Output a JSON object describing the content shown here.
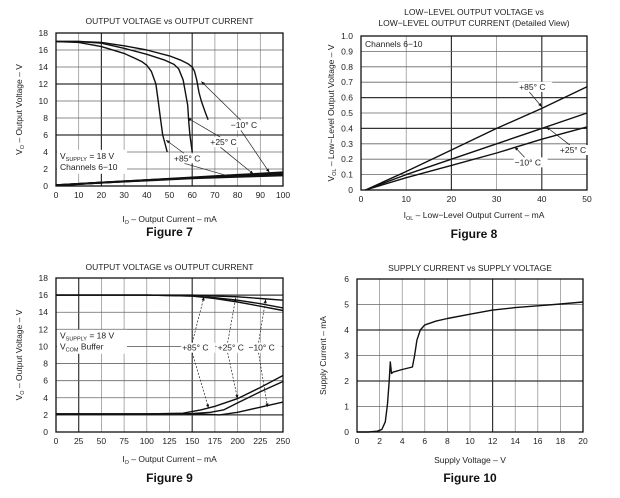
{
  "chart_data": [
    {
      "id": "fig7",
      "type": "line",
      "figure_label": "Figure 7",
      "title": [
        "OUTPUT VOLTAGE vs OUTPUT CURRENT"
      ],
      "xlabel": {
        "main": "I",
        "sub": "O",
        "rest": " – Output Current – mA"
      },
      "ylabel": {
        "main": "V",
        "sub": "O",
        "rest": " – Output Voltage – V"
      },
      "xlim": [
        0,
        100
      ],
      "ylim": [
        0,
        18
      ],
      "xticks": [
        0,
        10,
        20,
        30,
        40,
        50,
        60,
        70,
        80,
        90,
        100
      ],
      "yticks": [
        0,
        2,
        4,
        6,
        8,
        10,
        12,
        14,
        16,
        18
      ],
      "grid": true,
      "notes": [
        {
          "main": "V",
          "sub": "SUPPLY",
          "rest": " = 18 V"
        },
        {
          "main": "Channels 6−10",
          "sub": "",
          "rest": ""
        }
      ],
      "series": [
        {
          "name": "−10° C",
          "x": [
            0,
            10,
            20,
            30,
            40,
            50,
            55,
            58,
            60,
            61,
            62,
            63,
            64,
            66,
            67
          ],
          "y": [
            17,
            17,
            16.9,
            16.5,
            16,
            15.3,
            14.8,
            14.4,
            14,
            13.5,
            12.5,
            11,
            10,
            8.5,
            7.8
          ]
        },
        {
          "name": "+25° C",
          "x": [
            0,
            10,
            20,
            30,
            40,
            48,
            52,
            54,
            56,
            57,
            58,
            58.5,
            59,
            60
          ],
          "y": [
            17,
            17,
            16.8,
            16.2,
            15.5,
            14.8,
            14.3,
            13.8,
            12.5,
            11,
            9.5,
            7.5,
            6,
            4
          ]
        },
        {
          "name": "+85° C",
          "x": [
            0,
            10,
            20,
            30,
            35,
            38,
            40,
            42,
            44,
            45,
            46,
            47,
            48,
            49
          ],
          "y": [
            17,
            16.9,
            16.4,
            15.6,
            15,
            14.6,
            14.2,
            13.5,
            12,
            10,
            8,
            6,
            5,
            4
          ]
        },
        {
          "name": "low -10",
          "x": [
            0,
            20,
            40,
            60,
            80,
            100
          ],
          "y": [
            0.1,
            0.4,
            0.7,
            1.0,
            1.3,
            1.6
          ]
        },
        {
          "name": "low +25",
          "x": [
            0,
            20,
            40,
            60,
            80,
            100
          ],
          "y": [
            0.1,
            0.4,
            0.7,
            0.95,
            1.2,
            1.4
          ]
        },
        {
          "name": "low +85",
          "x": [
            0,
            20,
            40,
            60,
            80,
            100
          ],
          "y": [
            0.1,
            0.4,
            0.65,
            0.9,
            1.1,
            1.25
          ]
        }
      ],
      "annotations": [
        {
          "text": "−10° C",
          "x": 77,
          "y": 6.8,
          "arrows": [
            [
              64,
              12.3
            ],
            [
              94,
              1.6
            ]
          ]
        },
        {
          "text": "+25° C",
          "x": 68,
          "y": 4.8,
          "arrows": [
            [
              58,
              8
            ],
            [
              87,
              1.4
            ]
          ]
        },
        {
          "text": "+85° C",
          "x": 52,
          "y": 2.9,
          "arrows": [
            [
              48.5,
              5.4
            ],
            [
              77,
              1.1
            ]
          ]
        }
      ]
    },
    {
      "id": "fig8",
      "type": "line",
      "figure_label": "Figure 8",
      "title": [
        "LOW−LEVEL OUTPUT VOLTAGE vs",
        "LOW−LEVEL OUTPUT CURRENT (Detailed View)"
      ],
      "xlabel": {
        "main": "I",
        "sub": "OL",
        "rest": " – Low−Level Output Current – mA"
      },
      "ylabel": {
        "main": "V",
        "sub": "OL",
        "rest": " – Low−Level Output Voltage – V"
      },
      "xlim": [
        0,
        50
      ],
      "ylim": [
        0,
        1.0
      ],
      "xticks": [
        0,
        10,
        20,
        30,
        40,
        50
      ],
      "yticks": [
        "0",
        "0.1",
        "0.2",
        "0.3",
        "0.4",
        "0.5",
        "0.6",
        "0.7",
        "0.8",
        "0.9",
        "1.0"
      ],
      "grid": true,
      "notes": [
        {
          "main": "Channels 6−10",
          "sub": "",
          "rest": ""
        }
      ],
      "series": [
        {
          "name": "+85° C",
          "x": [
            1,
            10,
            20,
            30,
            40,
            50
          ],
          "y": [
            0,
            0.12,
            0.26,
            0.4,
            0.53,
            0.67
          ]
        },
        {
          "name": "+25° C",
          "x": [
            1,
            10,
            20,
            30,
            40,
            50
          ],
          "y": [
            0,
            0.1,
            0.2,
            0.3,
            0.4,
            0.5
          ]
        },
        {
          "name": "−10° C",
          "x": [
            1,
            10,
            20,
            30,
            40,
            50
          ],
          "y": [
            0,
            0.08,
            0.16,
            0.24,
            0.33,
            0.41
          ]
        }
      ],
      "annotations": [
        {
          "text": "+85° C",
          "x": 35,
          "y": 0.65,
          "arrows": [
            [
              40,
              0.54
            ]
          ]
        },
        {
          "text": "+25° C",
          "x": 44,
          "y": 0.24,
          "arrows": [
            [
              41,
              0.41
            ]
          ]
        },
        {
          "text": "−10° C",
          "x": 34,
          "y": 0.16,
          "arrows": [
            [
              34,
              0.28
            ]
          ]
        }
      ]
    },
    {
      "id": "fig9",
      "type": "line",
      "figure_label": "Figure 9",
      "title": [
        "OUTPUT VOLTAGE vs OUTPUT CURRENT"
      ],
      "xlabel": {
        "main": "I",
        "sub": "O",
        "rest": " – Output Current – mA"
      },
      "ylabel": {
        "main": "V",
        "sub": "O",
        "rest": " – Output Voltage – V"
      },
      "xlim": [
        0,
        250
      ],
      "ylim": [
        0,
        18
      ],
      "xticks": [
        0,
        25,
        50,
        75,
        100,
        125,
        150,
        175,
        200,
        225,
        250
      ],
      "yticks": [
        0,
        2,
        4,
        6,
        8,
        10,
        12,
        14,
        16,
        18
      ],
      "grid": true,
      "notes": [
        {
          "main": "V",
          "sub": "SUPPLY",
          "rest": " = 18 V"
        },
        {
          "main": "V",
          "sub": "COM",
          "rest": " Buffer"
        }
      ],
      "series": [
        {
          "name": "+85° C high",
          "x": [
            0,
            100,
            150,
            175,
            200,
            225,
            250
          ],
          "y": [
            16,
            16,
            15.9,
            15.6,
            15.2,
            14.7,
            14.2
          ]
        },
        {
          "name": "+25° C high",
          "x": [
            0,
            100,
            150,
            175,
            200,
            225,
            250
          ],
          "y": [
            16,
            16,
            15.9,
            15.7,
            15.4,
            15,
            14.5
          ]
        },
        {
          "name": "−10° C high",
          "x": [
            0,
            100,
            150,
            175,
            200,
            225,
            250
          ],
          "y": [
            16,
            16,
            16,
            15.9,
            15.8,
            15.6,
            15.4
          ]
        },
        {
          "name": "+85° C low",
          "x": [
            0,
            100,
            140,
            160,
            175,
            200,
            225,
            250
          ],
          "y": [
            2.1,
            2.1,
            2.2,
            2.6,
            3.0,
            3.9,
            5.2,
            6.6
          ]
        },
        {
          "name": "+25° C low",
          "x": [
            0,
            100,
            150,
            170,
            185,
            200,
            225,
            250
          ],
          "y": [
            2.1,
            2.1,
            2.15,
            2.3,
            2.6,
            3.4,
            4.7,
            5.9
          ]
        },
        {
          "name": "−10° C low",
          "x": [
            0,
            100,
            150,
            170,
            180,
            200,
            225,
            250
          ],
          "y": [
            2.1,
            2.1,
            2.1,
            2.05,
            2.0,
            2.3,
            2.9,
            3.5
          ]
        }
      ],
      "annotations": [
        {
          "text": "+85° C",
          "x": 139,
          "y": 9.5,
          "arrows": [
            [
              163,
              15.8
            ],
            [
              168,
              2.8
            ]
          ]
        },
        {
          "text": "+25° C",
          "x": 178,
          "y": 9.5,
          "arrows": [
            [
              198,
              15.7
            ],
            [
              200,
              3.9
            ]
          ]
        },
        {
          "text": "−10° C",
          "x": 212,
          "y": 9.5,
          "arrows": [
            [
              231,
              15.5
            ],
            [
              233,
              2.9
            ]
          ]
        }
      ]
    },
    {
      "id": "fig10",
      "type": "line",
      "figure_label": "Figure 10",
      "title": [
        "SUPPLY CURRENT vs SUPPLY VOLTAGE"
      ],
      "xlabel": {
        "main": "Supply Voltage – V",
        "sub": "",
        "rest": ""
      },
      "ylabel": {
        "main": "Supply Current – mA",
        "sub": "",
        "rest": ""
      },
      "xlim": [
        0,
        20
      ],
      "ylim": [
        0,
        6
      ],
      "xticks": [
        0,
        2,
        4,
        6,
        8,
        10,
        12,
        14,
        16,
        18,
        20
      ],
      "yticks": [
        0,
        1,
        2,
        3,
        4,
        5,
        6
      ],
      "grid": true,
      "notes": [],
      "series": [
        {
          "name": "Supply Current",
          "x": [
            0,
            1,
            1.8,
            2.2,
            2.5,
            2.7,
            2.85,
            2.95,
            3.05,
            3.2,
            4,
            4.9,
            5.1,
            5.3,
            5.6,
            6,
            7,
            8,
            10,
            12,
            14,
            16,
            18,
            20
          ],
          "y": [
            0,
            0,
            0.03,
            0.1,
            0.4,
            1.1,
            2.0,
            2.75,
            2.3,
            2.35,
            2.45,
            2.55,
            3.0,
            3.6,
            4.0,
            4.2,
            4.35,
            4.45,
            4.62,
            4.78,
            4.88,
            4.95,
            5.02,
            5.1
          ]
        }
      ],
      "annotations": []
    }
  ]
}
